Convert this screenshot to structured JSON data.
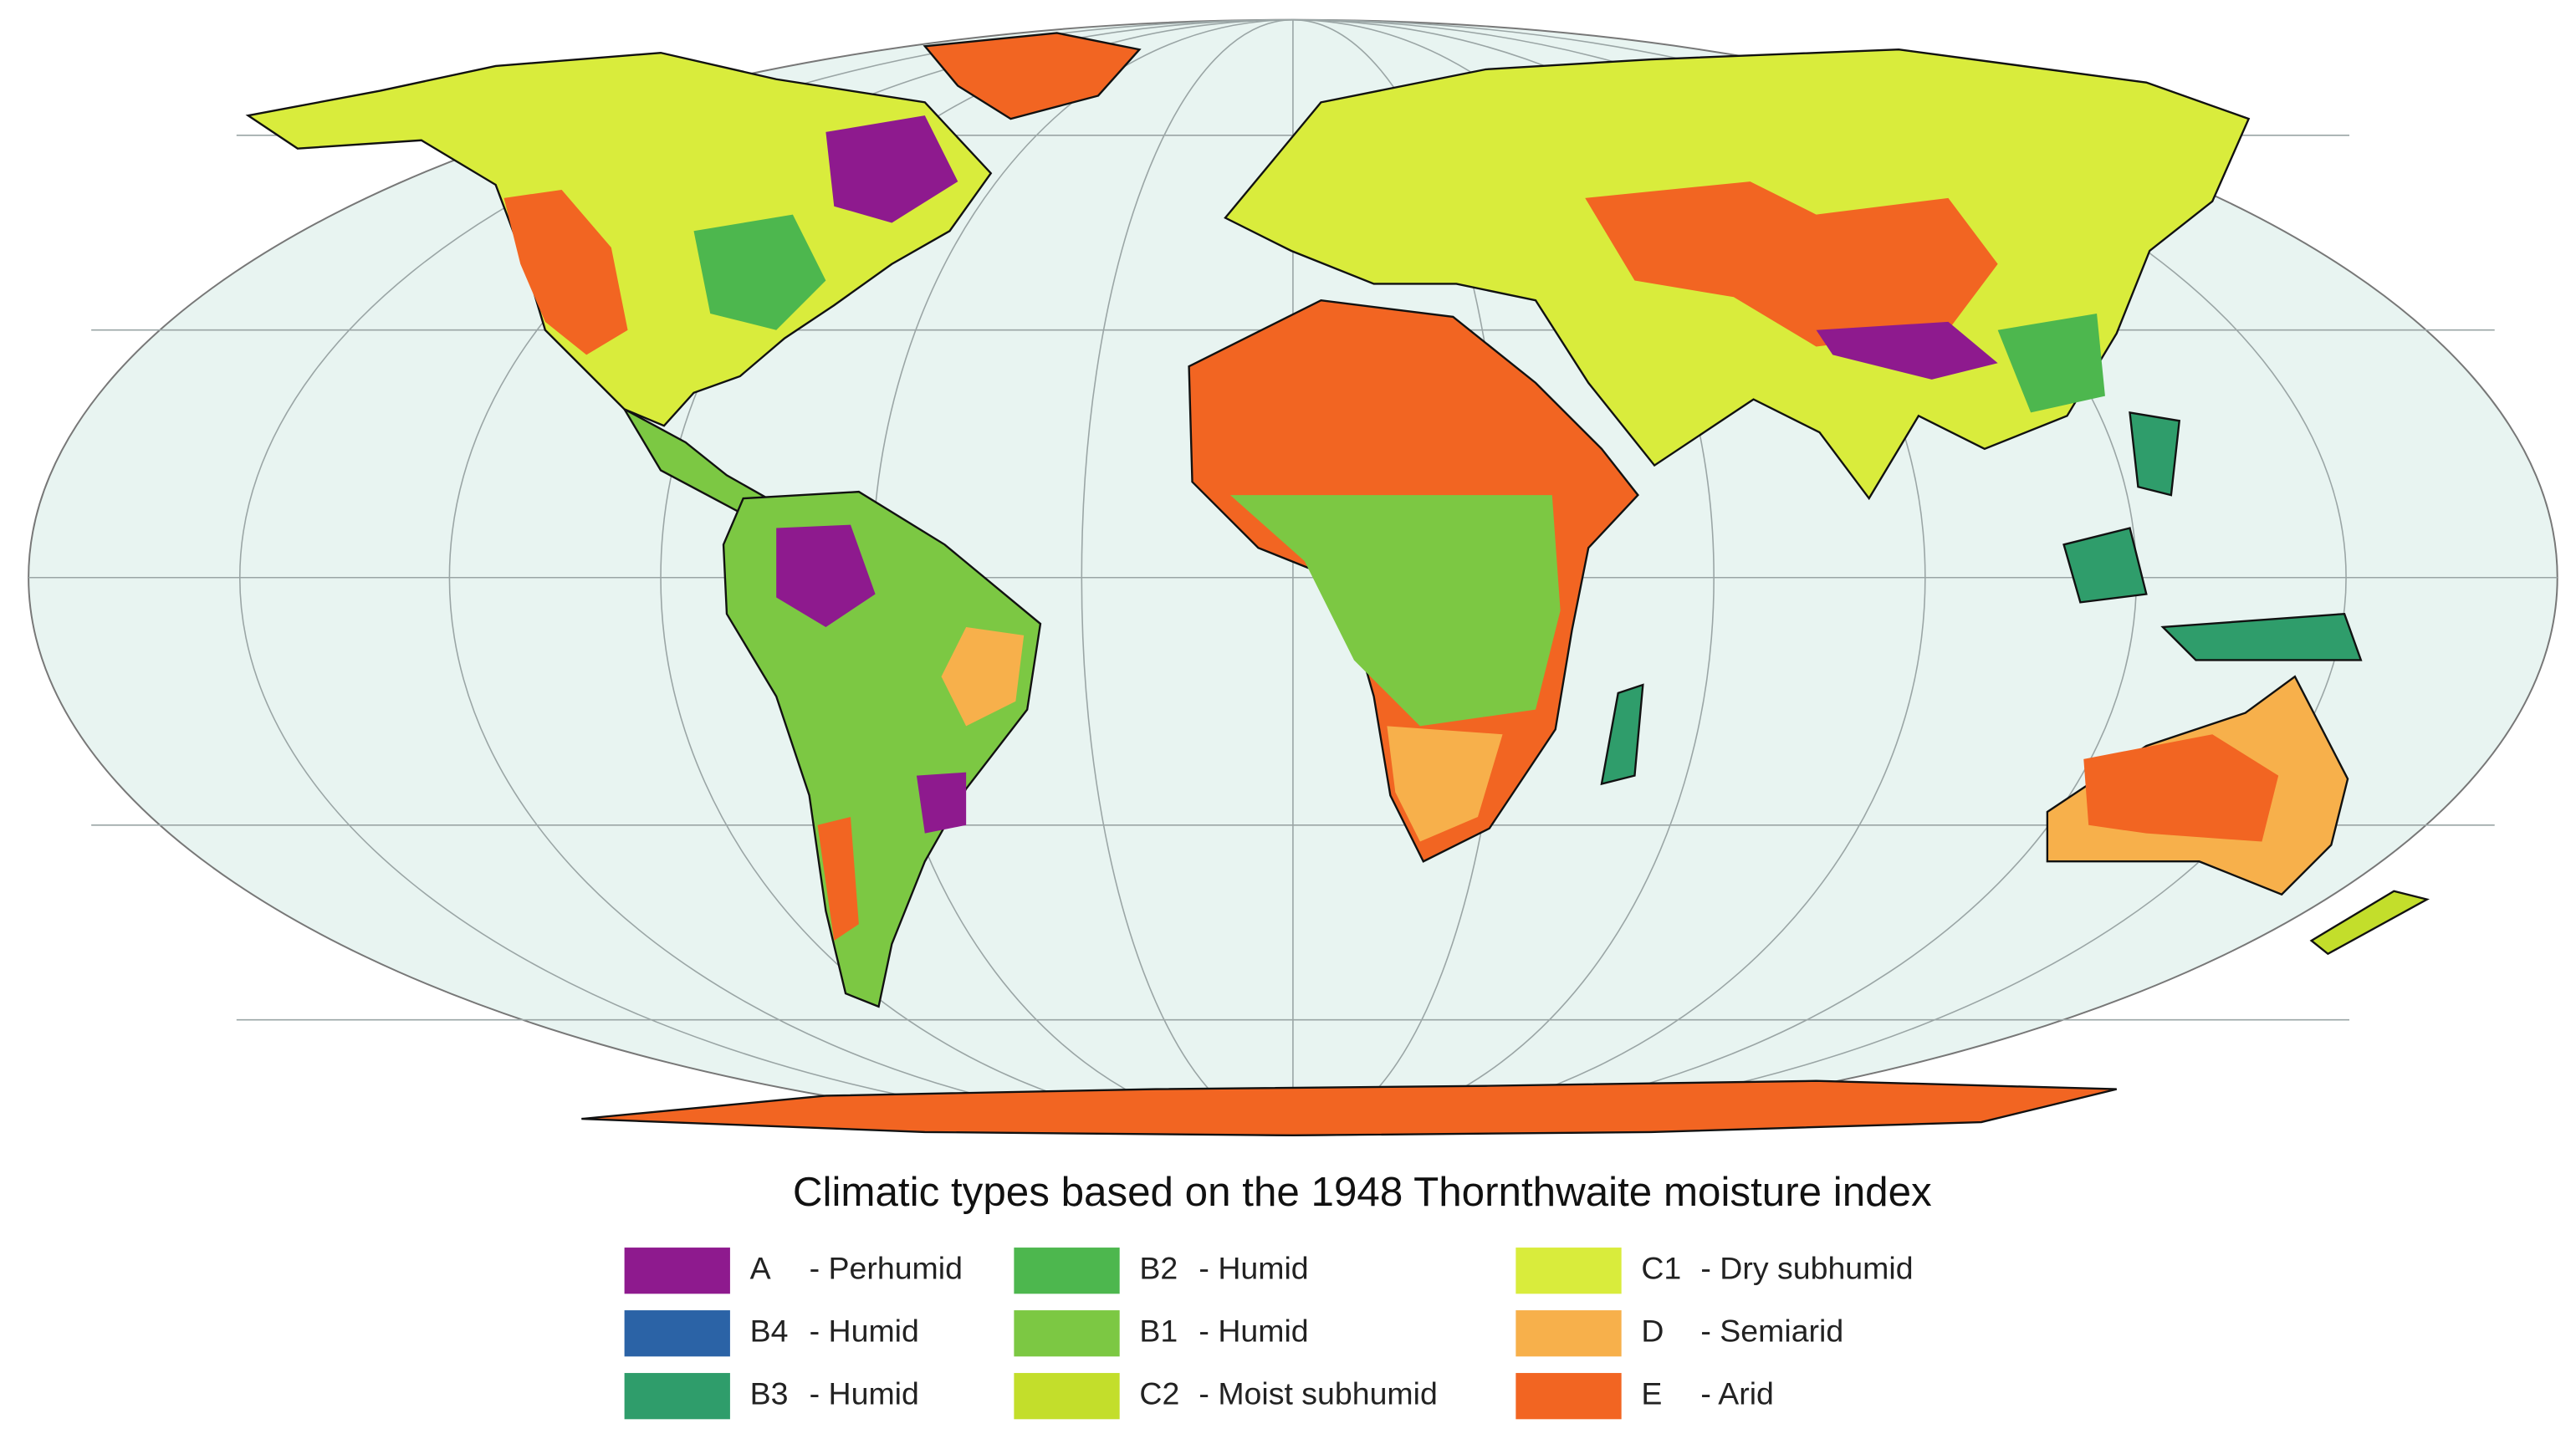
{
  "title": "Climatic types based on the 1948 Thornthwaite moisture index",
  "legend": {
    "items": [
      {
        "code": "A",
        "label": "- Perhumid",
        "color": "#8e1a8e"
      },
      {
        "code": "B4",
        "label": "- Humid",
        "color": "#2b63a6"
      },
      {
        "code": "B3",
        "label": "- Humid",
        "color": "#2f9d6b"
      },
      {
        "code": "B2",
        "label": "- Humid",
        "color": "#4db74e"
      },
      {
        "code": "B1",
        "label": "- Humid",
        "color": "#7cc843"
      },
      {
        "code": "C2",
        "label": "- Moist subhumid",
        "color": "#c3de2b"
      },
      {
        "code": "C1",
        "label": "- Dry subhumid",
        "color": "#d9ec3c"
      },
      {
        "code": "D",
        "label": "- Semiarid",
        "color": "#f7b04b"
      },
      {
        "code": "E",
        "label": "- Arid",
        "color": "#f26522"
      }
    ]
  }
}
